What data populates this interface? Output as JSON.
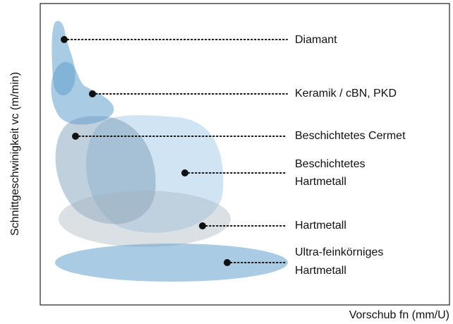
{
  "y_axis_label": "Schnittgeschwinigkeit vc (m/min)",
  "x_axis_label": "Vorschub fn (mm/U)",
  "regions": [
    {
      "label": [
        "Diamant"
      ]
    },
    {
      "label": [
        "Keramik / cBN, PKD"
      ]
    },
    {
      "label": [
        "Beschichtetes Cermet"
      ]
    },
    {
      "label": [
        "Beschichtetes",
        "Hartmetall"
      ]
    },
    {
      "label": [
        "Hartmetall"
      ]
    },
    {
      "label": [
        "Ultra-feinkörniges",
        "Hartmetall"
      ]
    }
  ]
}
